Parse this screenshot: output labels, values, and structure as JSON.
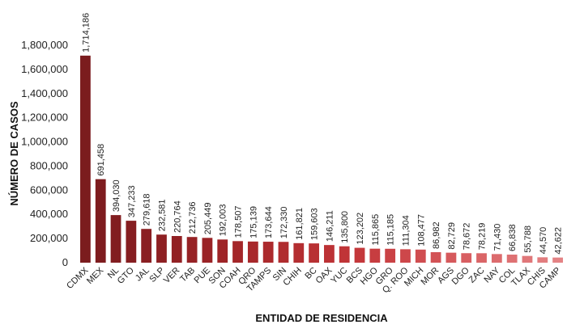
{
  "chart_data": {
    "type": "bar",
    "xlabel": "ENTIDAD DE RESIDENCIA",
    "ylabel": "NÚMERO DE CASOS",
    "ylim": [
      0,
      1800000
    ],
    "yticks": [
      "0",
      "200,000",
      "400,000",
      "600,000",
      "800,000",
      "1,000,000",
      "1,200,000",
      "1,400,000",
      "1,600,000",
      "1,800,000"
    ],
    "grid": false,
    "categories": [
      "CDMX",
      "MEX",
      "NL",
      "GTO",
      "JAL",
      "SLP",
      "VER",
      "TAB",
      "PUE",
      "SON",
      "COAH",
      "QRO",
      "TAMPS",
      "SIN",
      "CHIH",
      "BC",
      "OAX",
      "YUC",
      "BCS",
      "HGO",
      "GRO",
      "Q. ROO",
      "MICH",
      "MOR",
      "AGS",
      "DGO",
      "ZAC",
      "NAY",
      "COL",
      "TLAX",
      "CHIS",
      "CAMP"
    ],
    "values": [
      1714186,
      691458,
      394030,
      347233,
      279618,
      232581,
      220764,
      212736,
      205449,
      192003,
      178507,
      175139,
      173644,
      172330,
      161821,
      159603,
      146211,
      135800,
      123202,
      115865,
      115185,
      111304,
      108477,
      86982,
      82729,
      78672,
      78219,
      71430,
      66838,
      55788,
      44570,
      42622
    ],
    "value_labels": [
      "1,714,186",
      "691,458",
      "394,030",
      "347,233",
      "279,618",
      "232,581",
      "220,764",
      "212,736",
      "205,449",
      "192,003",
      "178,507",
      "175,139",
      "173,644",
      "172,330",
      "161,821",
      "159,603",
      "146,211",
      "135,800",
      "123,202",
      "115,865",
      "115,185",
      "111,304",
      "108,477",
      "86,982",
      "82,729",
      "78,672",
      "78,219",
      "71,430",
      "66,838",
      "55,788",
      "44,570",
      "42,622"
    ],
    "colors": [
      "#7b1c1e",
      "#7e1c1f",
      "#821d20",
      "#861e21",
      "#8a1f22",
      "#8e2023",
      "#922124",
      "#962225",
      "#9a2326",
      "#9e2427",
      "#a42629",
      "#a8282b",
      "#ac2a2d",
      "#b02c2f",
      "#b42e31",
      "#b83033",
      "#bc3235",
      "#c03437",
      "#c4383b",
      "#c73d40",
      "#ca4245",
      "#cd474a",
      "#d04d50",
      "#d35356",
      "#d6595c",
      "#d85f62",
      "#da6567",
      "#dc6b6d",
      "#de7173",
      "#e07779",
      "#e27d7f",
      "#e48385"
    ]
  }
}
